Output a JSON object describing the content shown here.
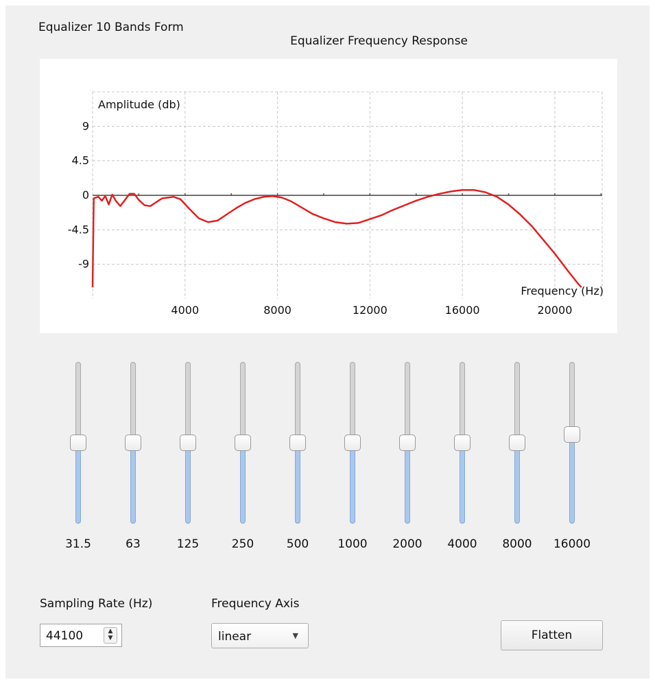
{
  "window": {
    "title": "Equalizer 10 Bands Form"
  },
  "chart_data": {
    "type": "line",
    "title": "Equalizer Frequency Response",
    "ylabel": "Amplitude (db)",
    "xlabel": "Frequency (Hz)",
    "xlim": [
      0,
      22050
    ],
    "ylim": [
      -13.5,
      13.5
    ],
    "xticks": [
      4000,
      8000,
      12000,
      16000,
      20000
    ],
    "yticks": [
      9,
      4.5,
      0,
      -4.5,
      -9
    ],
    "grid": true,
    "series": [
      {
        "color": "#e02020",
        "x": [
          0,
          50,
          120,
          250,
          400,
          550,
          700,
          850,
          1000,
          1200,
          1400,
          1600,
          1800,
          2000,
          2250,
          2500,
          2750,
          3000,
          3250,
          3500,
          3800,
          4200,
          4600,
          5000,
          5400,
          5800,
          6200,
          6600,
          7000,
          7400,
          7800,
          8200,
          8600,
          9000,
          9500,
          10000,
          10500,
          11000,
          11500,
          12000,
          12500,
          13000,
          13500,
          14000,
          14500,
          15000,
          15500,
          16000,
          16500,
          17000,
          17500,
          18000,
          18500,
          19000,
          19500,
          20000,
          20500,
          21000,
          21150
        ],
        "y": [
          -12.0,
          -0.4,
          -0.3,
          -0.2,
          -0.7,
          -0.1,
          -1.2,
          0.1,
          -0.7,
          -1.4,
          -0.6,
          0.2,
          0.2,
          -0.6,
          -1.3,
          -1.4,
          -0.9,
          -0.4,
          -0.3,
          -0.2,
          -0.5,
          -1.8,
          -3.0,
          -3.5,
          -3.3,
          -2.5,
          -1.7,
          -1.0,
          -0.5,
          -0.2,
          -0.1,
          -0.3,
          -0.8,
          -1.5,
          -2.4,
          -3.0,
          -3.5,
          -3.7,
          -3.6,
          -3.1,
          -2.6,
          -1.9,
          -1.3,
          -0.7,
          -0.2,
          0.2,
          0.5,
          0.7,
          0.7,
          0.4,
          -0.2,
          -1.2,
          -2.5,
          -4.0,
          -5.8,
          -7.6,
          -9.6,
          -11.5,
          -12.0
        ]
      }
    ]
  },
  "bands": [
    {
      "label": "31.5",
      "level": 0.5
    },
    {
      "label": "63",
      "level": 0.5
    },
    {
      "label": "125",
      "level": 0.5
    },
    {
      "label": "250",
      "level": 0.5
    },
    {
      "label": "500",
      "level": 0.5
    },
    {
      "label": "1000",
      "level": 0.5
    },
    {
      "label": "2000",
      "level": 0.5
    },
    {
      "label": "4000",
      "level": 0.5
    },
    {
      "label": "8000",
      "level": 0.5
    },
    {
      "label": "16000",
      "level": 0.56
    }
  ],
  "sampling_rate": {
    "label": "Sampling Rate (Hz)",
    "value": "44100"
  },
  "frequency_axis": {
    "label": "Frequency Axis",
    "value": "linear"
  },
  "flatten_button": {
    "label": "Flatten"
  }
}
